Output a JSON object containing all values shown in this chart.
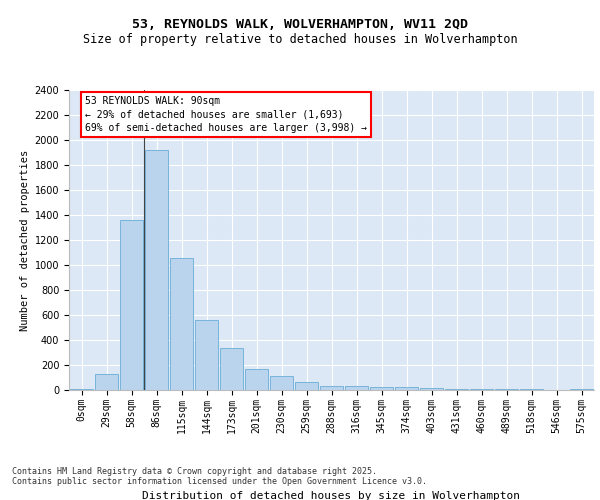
{
  "title1": "53, REYNOLDS WALK, WOLVERHAMPTON, WV11 2QD",
  "title2": "Size of property relative to detached houses in Wolverhampton",
  "xlabel": "Distribution of detached houses by size in Wolverhampton",
  "ylabel": "Number of detached properties",
  "categories": [
    "0sqm",
    "29sqm",
    "58sqm",
    "86sqm",
    "115sqm",
    "144sqm",
    "173sqm",
    "201sqm",
    "230sqm",
    "259sqm",
    "288sqm",
    "316sqm",
    "345sqm",
    "374sqm",
    "403sqm",
    "431sqm",
    "460sqm",
    "489sqm",
    "518sqm",
    "546sqm",
    "575sqm"
  ],
  "values": [
    10,
    125,
    1360,
    1920,
    1055,
    560,
    335,
    170,
    110,
    65,
    35,
    30,
    25,
    22,
    15,
    5,
    5,
    5,
    5,
    0,
    10
  ],
  "bar_color": "#bad4ed",
  "bar_edge_color": "#6aaed6",
  "bg_color": "#dce8f5",
  "grid_color": "#ffffff",
  "annotation_text": "53 REYNOLDS WALK: 90sqm\n← 29% of detached houses are smaller (1,693)\n69% of semi-detached houses are larger (3,998) →",
  "vline_index": 3,
  "ylim": [
    0,
    2400
  ],
  "yticks": [
    0,
    200,
    400,
    600,
    800,
    1000,
    1200,
    1400,
    1600,
    1800,
    2000,
    2200,
    2400
  ],
  "footnote1": "Contains HM Land Registry data © Crown copyright and database right 2025.",
  "footnote2": "Contains public sector information licensed under the Open Government Licence v3.0.",
  "title1_fontsize": 9.5,
  "title2_fontsize": 8.5,
  "ylabel_fontsize": 7.5,
  "xlabel_fontsize": 8.0,
  "tick_fontsize": 7.0,
  "annot_fontsize": 7.0,
  "footnote_fontsize": 6.0
}
